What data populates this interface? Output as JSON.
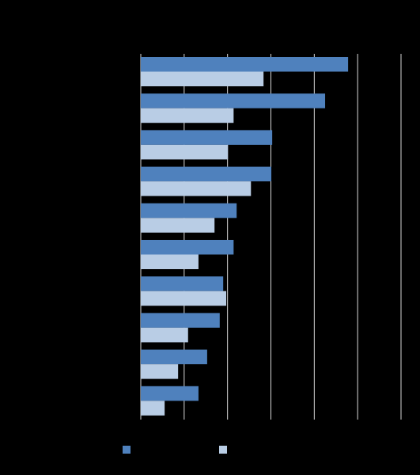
{
  "chart_data": {
    "type": "hbar",
    "categories": [
      null,
      null,
      null,
      null,
      null,
      null,
      null,
      null,
      null,
      null
    ],
    "series": [
      {
        "color": "#4f81bd",
        "values": [
          4.78,
          4.25,
          3.03,
          3.01,
          2.21,
          2.14,
          1.9,
          1.82,
          1.53,
          1.33
        ]
      },
      {
        "color": "#b9cde5",
        "values": [
          2.83,
          2.14,
          2.01,
          2.54,
          1.7,
          1.33,
          1.97,
          1.09,
          0.86,
          0.55
        ]
      }
    ],
    "xlim": [
      0,
      6
    ],
    "xticks": [
      0,
      1,
      2,
      3,
      4,
      5,
      6
    ],
    "grid": true,
    "background": "#000000",
    "grid_color": "#d9d9d9",
    "legend": "bottom"
  }
}
